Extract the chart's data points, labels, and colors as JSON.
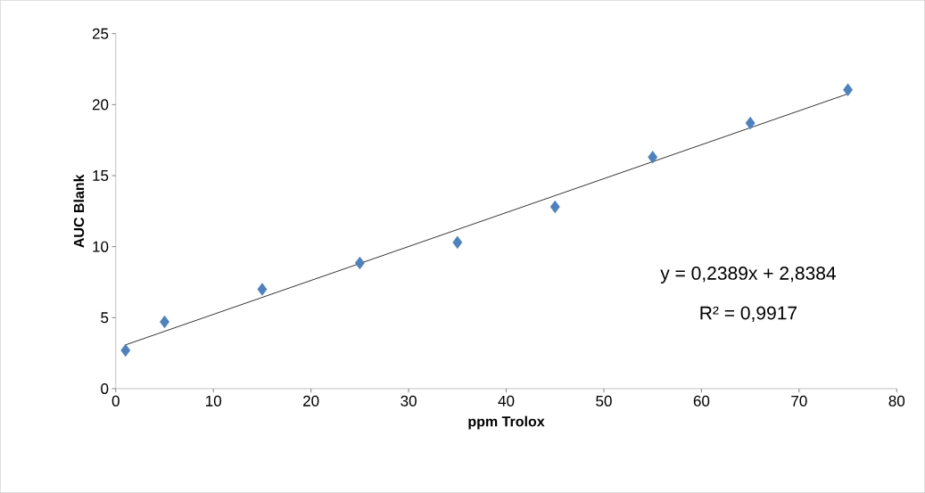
{
  "chart_data": {
    "type": "scatter",
    "xlabel": "ppm Trolox",
    "ylabel": "AUC   Blank",
    "xlim": [
      0,
      80
    ],
    "ylim": [
      0,
      25
    ],
    "xticks": [
      0,
      10,
      20,
      30,
      40,
      50,
      60,
      70,
      80
    ],
    "yticks": [
      0,
      5,
      10,
      15,
      20,
      25
    ],
    "marker": "diamond",
    "series": [
      {
        "color": "#4f81bd",
        "x": [
          1,
          5,
          15,
          25,
          35,
          45,
          55,
          65,
          75
        ],
        "values": [
          2.7,
          4.7,
          7.0,
          8.85,
          10.3,
          12.8,
          16.3,
          18.7,
          21.05
        ]
      },
      {
        "type": "line",
        "color": "#000000",
        "marker": "none",
        "x": [
          1,
          75
        ],
        "values": [
          3.08,
          20.76
        ]
      }
    ],
    "annotations": [
      "y = 0,2389x + 2,8384",
      "R² = 0,9917"
    ]
  }
}
